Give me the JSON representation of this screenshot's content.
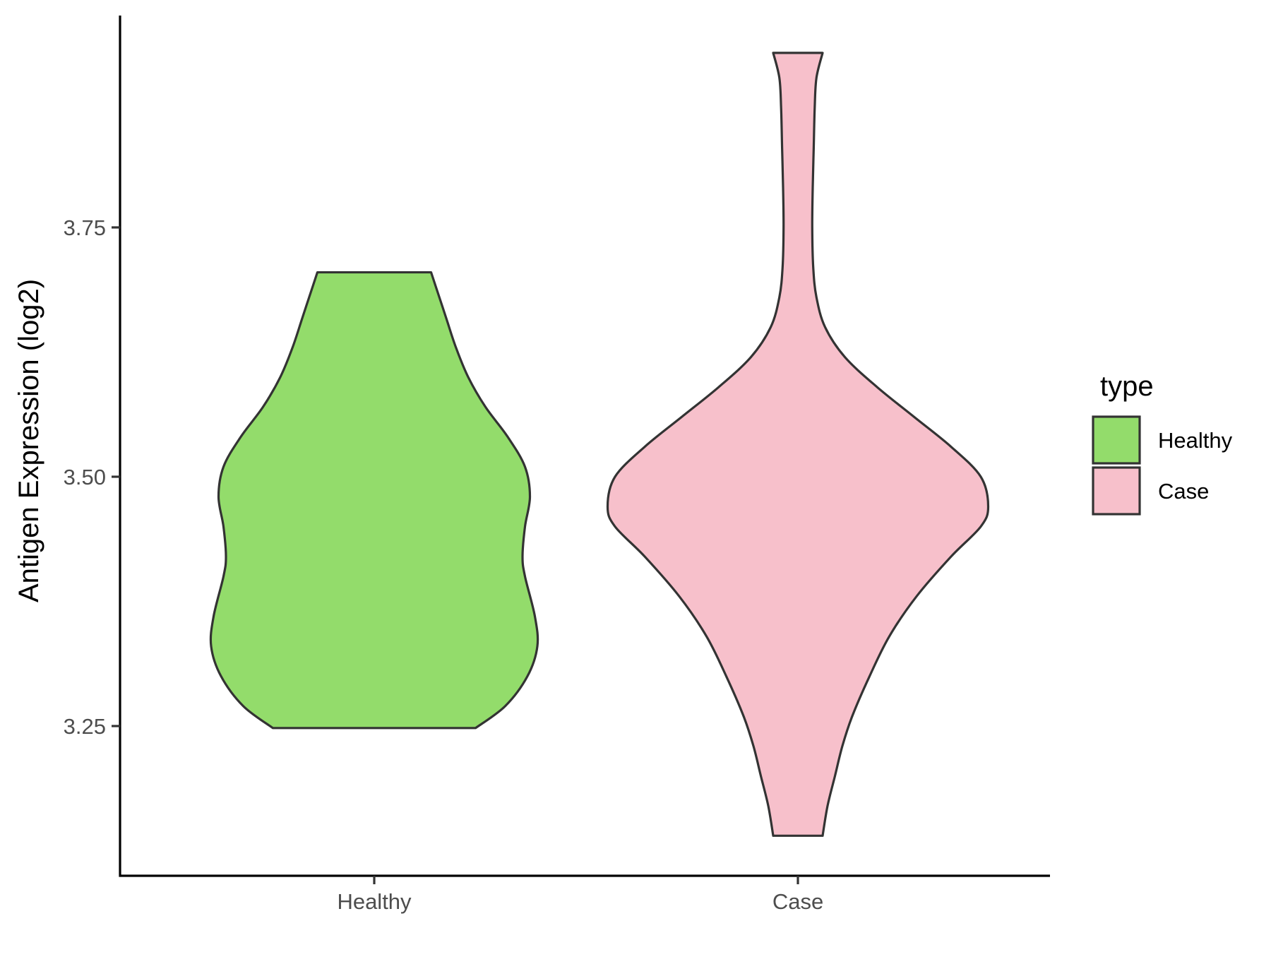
{
  "chart_data": {
    "type": "violin",
    "title": "",
    "xlabel": "",
    "ylabel": "Antigen Expression (log2)",
    "categories": [
      "Healthy",
      "Case"
    ],
    "ylim": [
      3.1,
      3.96
    ],
    "y_ticks": [
      {
        "value": 3.25,
        "label": "3.25"
      },
      {
        "value": 3.5,
        "label": "3.50"
      },
      {
        "value": 3.75,
        "label": "3.75"
      }
    ],
    "grid": false,
    "legend": {
      "title": "type",
      "placement": "right",
      "entries": [
        {
          "label": "Healthy",
          "color": "#93DC6B"
        },
        {
          "label": "Case",
          "color": "#F7C0CB"
        }
      ]
    },
    "series": [
      {
        "category": "Healthy",
        "color": "#93DC6B",
        "y_min": 3.248,
        "y_max": 3.705,
        "density_profile": [
          [
            3.248,
            0.41
          ],
          [
            3.27,
            0.53
          ],
          [
            3.3,
            0.62
          ],
          [
            3.33,
            0.66
          ],
          [
            3.36,
            0.65
          ],
          [
            3.4,
            0.61
          ],
          [
            3.42,
            0.6
          ],
          [
            3.45,
            0.61
          ],
          [
            3.48,
            0.63
          ],
          [
            3.51,
            0.61
          ],
          [
            3.54,
            0.54
          ],
          [
            3.57,
            0.45
          ],
          [
            3.6,
            0.38
          ],
          [
            3.63,
            0.33
          ],
          [
            3.66,
            0.29
          ],
          [
            3.69,
            0.25
          ],
          [
            3.705,
            0.23
          ]
        ]
      },
      {
        "category": "Case",
        "color": "#F7C0CB",
        "y_min": 3.14,
        "y_max": 3.925,
        "density_profile": [
          [
            3.14,
            0.1
          ],
          [
            3.17,
            0.12
          ],
          [
            3.2,
            0.15
          ],
          [
            3.23,
            0.18
          ],
          [
            3.26,
            0.22
          ],
          [
            3.3,
            0.29
          ],
          [
            3.34,
            0.37
          ],
          [
            3.38,
            0.48
          ],
          [
            3.42,
            0.62
          ],
          [
            3.45,
            0.74
          ],
          [
            3.47,
            0.77
          ],
          [
            3.5,
            0.74
          ],
          [
            3.53,
            0.62
          ],
          [
            3.56,
            0.47
          ],
          [
            3.59,
            0.32
          ],
          [
            3.62,
            0.19
          ],
          [
            3.65,
            0.11
          ],
          [
            3.68,
            0.075
          ],
          [
            3.71,
            0.062
          ],
          [
            3.75,
            0.058
          ],
          [
            3.79,
            0.06
          ],
          [
            3.83,
            0.064
          ],
          [
            3.87,
            0.068
          ],
          [
            3.9,
            0.075
          ],
          [
            3.925,
            0.1
          ]
        ]
      }
    ]
  }
}
